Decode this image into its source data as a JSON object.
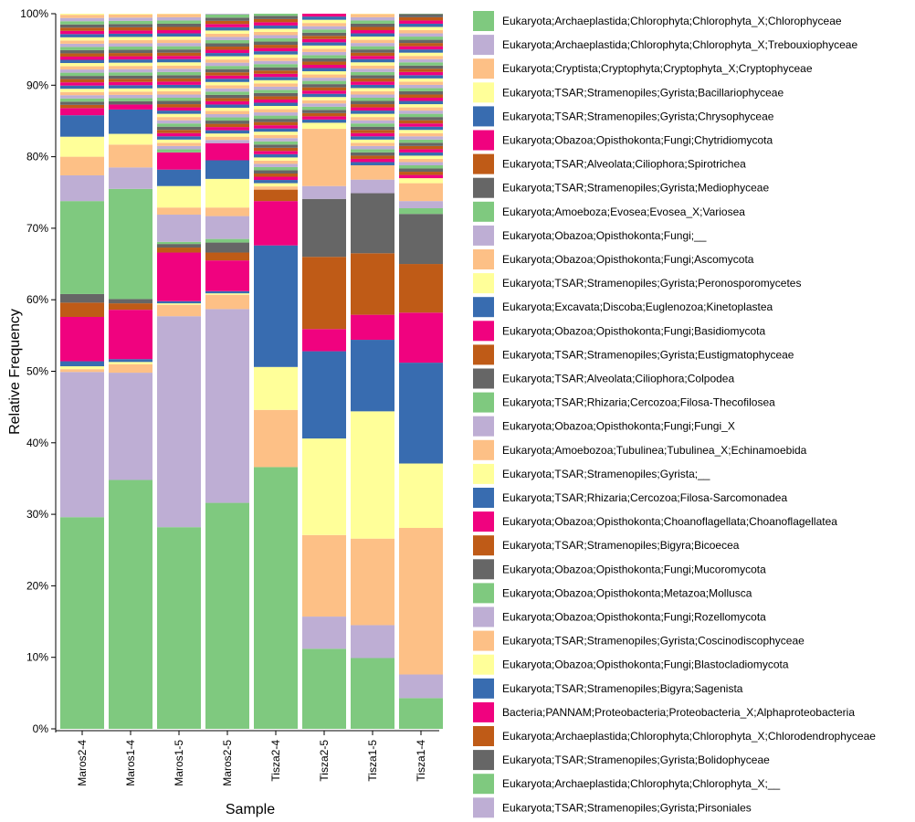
{
  "chart_data": {
    "type": "bar",
    "stacked": true,
    "title": "",
    "xlabel": "Sample",
    "ylabel": "Relative Frequency",
    "ylim": [
      0,
      1
    ],
    "yticks": [
      "0%",
      "10%",
      "20%",
      "30%",
      "40%",
      "50%",
      "60%",
      "70%",
      "80%",
      "90%",
      "100%"
    ],
    "categories": [
      "Maros2-4",
      "Maros1-4",
      "Maros1-5",
      "Maros2-5",
      "Tisza2-4",
      "Tisza2-5",
      "Tisza1-5",
      "Tisza1-4"
    ],
    "legend_position": "right",
    "palette": [
      "#7fc97f",
      "#beaed4",
      "#fdc086",
      "#ffff99",
      "#386cb0",
      "#f0027f",
      "#bf5b17",
      "#666666"
    ],
    "series": [
      {
        "name": "Eukaryota;Archaeplastida;Chlorophyta;Chlorophyta_X;Chlorophyceae",
        "values": [
          0.296,
          0.348,
          0.282,
          0.316,
          0.366,
          0.112,
          0.099,
          0.043
        ]
      },
      {
        "name": "Eukaryota;Archaeplastida;Chlorophyta;Chlorophyta_X;Trebouxiophyceae",
        "values": [
          0.203,
          0.15,
          0.295,
          0.271,
          0.0,
          0.045,
          0.046,
          0.033
        ]
      },
      {
        "name": "Eukaryota;Cryptista;Cryptophyta;Cryptophyta_X;Cryptophyceae",
        "values": [
          0.004,
          0.012,
          0.016,
          0.02,
          0.08,
          0.114,
          0.121,
          0.205
        ]
      },
      {
        "name": "Eukaryota;TSAR;Stramenopiles;Gyrista;Bacillariophyceae",
        "values": [
          0.004,
          0.003,
          0.002,
          0.002,
          0.06,
          0.135,
          0.178,
          0.09
        ]
      },
      {
        "name": "Eukaryota;TSAR;Stramenopiles;Gyrista;Chrysophyceae",
        "values": [
          0.007,
          0.004,
          0.003,
          0.003,
          0.17,
          0.122,
          0.1,
          0.141
        ]
      },
      {
        "name": "Eukaryota;Obazoa;Opisthokonta;Fungi;Chytridiomycota",
        "values": [
          0.062,
          0.069,
          0.068,
          0.043,
          0.062,
          0.031,
          0.035,
          0.07
        ]
      },
      {
        "name": "Eukaryota;TSAR;Alveolata;Ciliophora;Spirotrichea",
        "values": [
          0.02,
          0.009,
          0.007,
          0.011,
          0.016,
          0.101,
          0.086,
          0.068
        ]
      },
      {
        "name": "Eukaryota;TSAR;Stramenopiles;Gyrista;Mediophyceae",
        "values": [
          0.012,
          0.006,
          0.005,
          0.014,
          0.0,
          0.081,
          0.084,
          0.07
        ]
      },
      {
        "name": "Eukaryota;Amoeboza;Evosea;Evosea_X;Variosea",
        "values": [
          0.13,
          0.154,
          0.003,
          0.005,
          0.0,
          0.0,
          0.0,
          0.008
        ]
      },
      {
        "name": "Eukaryota;Obazoa;Opisthokonta;Fungi;__",
        "values": [
          0.036,
          0.03,
          0.038,
          0.032,
          0.0,
          0.018,
          0.019,
          0.01
        ]
      },
      {
        "name": "Eukaryota;Obazoa;Opisthokonta;Fungi;Ascomycota",
        "values": [
          0.026,
          0.032,
          0.01,
          0.012,
          0.0,
          0.08,
          0.02,
          0.025
        ]
      },
      {
        "name": "Eukaryota;TSAR;Stramenopiles;Gyrista;Peronosporomycetes",
        "values": [
          0.028,
          0.015,
          0.03,
          0.04,
          0.0,
          0.004,
          0.0,
          0.007
        ]
      },
      {
        "name": "Eukaryota;Excavata;Discoba;Euglenozoa;Kinetoplastea",
        "values": [
          0.03,
          0.034,
          0.023,
          0.026,
          0.0,
          0.0,
          0.0,
          0.0
        ]
      },
      {
        "name": "Eukaryota;Obazoa;Opisthokonta;Fungi;Basidiomycota",
        "values": [
          0.01,
          0.007,
          0.024,
          0.024,
          0.0,
          0.0,
          0.0,
          0.0
        ]
      }
    ]
  },
  "legend_entries": [
    "Eukaryota;Archaeplastida;Chlorophyta;Chlorophyta_X;Chlorophyceae",
    "Eukaryota;Archaeplastida;Chlorophyta;Chlorophyta_X;Trebouxiophyceae",
    "Eukaryota;Cryptista;Cryptophyta;Cryptophyta_X;Cryptophyceae",
    "Eukaryota;TSAR;Stramenopiles;Gyrista;Bacillariophyceae",
    "Eukaryota;TSAR;Stramenopiles;Gyrista;Chrysophyceae",
    "Eukaryota;Obazoa;Opisthokonta;Fungi;Chytridiomycota",
    "Eukaryota;TSAR;Alveolata;Ciliophora;Spirotrichea",
    "Eukaryota;TSAR;Stramenopiles;Gyrista;Mediophyceae",
    "Eukaryota;Amoeboza;Evosea;Evosea_X;Variosea",
    "Eukaryota;Obazoa;Opisthokonta;Fungi;__",
    "Eukaryota;Obazoa;Opisthokonta;Fungi;Ascomycota",
    "Eukaryota;TSAR;Stramenopiles;Gyrista;Peronosporomycetes",
    "Eukaryota;Excavata;Discoba;Euglenozoa;Kinetoplastea",
    "Eukaryota;Obazoa;Opisthokonta;Fungi;Basidiomycota",
    "Eukaryota;TSAR;Stramenopiles;Gyrista;Eustigmatophyceae",
    "Eukaryota;TSAR;Alveolata;Ciliophora;Colpodea",
    "Eukaryota;TSAR;Rhizaria;Cercozoa;Filosa-Thecofilosea",
    "Eukaryota;Obazoa;Opisthokonta;Fungi;Fungi_X",
    "Eukaryota;Amoebozoa;Tubulinea;Tubulinea_X;Echinamoebida",
    "Eukaryota;TSAR;Stramenopiles;Gyrista;__",
    "Eukaryota;TSAR;Rhizaria;Cercozoa;Filosa-Sarcomonadea",
    "Eukaryota;Obazoa;Opisthokonta;Choanoflagellata;Choanoflagellatea",
    "Eukaryota;TSAR;Stramenopiles;Bigyra;Bicoecea",
    "Eukaryota;Obazoa;Opisthokonta;Fungi;Mucoromycota",
    "Eukaryota;Obazoa;Opisthokonta;Metazoa;Mollusca",
    "Eukaryota;Obazoa;Opisthokonta;Fungi;Rozellomycota",
    "Eukaryota;TSAR;Stramenopiles;Gyrista;Coscinodiscophyceae",
    "Eukaryota;Obazoa;Opisthokonta;Fungi;Blastocladiomycota",
    "Eukaryota;TSAR;Stramenopiles;Bigyra;Sagenista",
    "Bacteria;PANNAM;Proteobacteria;Proteobacteria_X;Alphaproteobacteria",
    "Eukaryota;Archaeplastida;Chlorophyta;Chlorophyta_X;Chlorodendrophyceae",
    "Eukaryota;TSAR;Stramenopiles;Gyrista;Bolidophyceae",
    "Eukaryota;Archaeplastida;Chlorophyta;Chlorophyta_X;__",
    "Eukaryota;TSAR;Stramenopiles;Gyrista;Pirsoniales"
  ]
}
